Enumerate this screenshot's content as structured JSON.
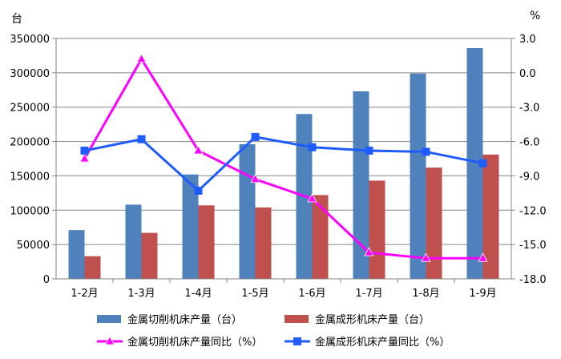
{
  "chart_data": {
    "type": "bar",
    "categories": [
      "1-2月",
      "1-3月",
      "1-4月",
      "1-5月",
      "1-6月",
      "1-7月",
      "1-8月",
      "1-9月"
    ],
    "left_axis": {
      "unit": "台",
      "ylim": [
        0,
        350000
      ],
      "ticks": [
        "0",
        "50000",
        "100000",
        "150000",
        "200000",
        "250000",
        "300000",
        "350000"
      ]
    },
    "right_axis": {
      "unit": "%",
      "ylim": [
        -18.0,
        3.0
      ],
      "ticks": [
        "-18.0",
        "-15.0",
        "-12.0",
        "-9.0",
        "-6.0",
        "-3.0",
        "0.0",
        "3.0"
      ]
    },
    "bar_series": [
      {
        "name": "金属切削机床产量（台）",
        "color": "#4F81BD",
        "values": [
          71000,
          108000,
          152000,
          196000,
          240000,
          273000,
          299000,
          336000
        ]
      },
      {
        "name": "金属成形机床产量（台）",
        "color": "#C0504D",
        "values": [
          33000,
          67000,
          107000,
          104000,
          122000,
          143000,
          162000,
          181000
        ]
      }
    ],
    "line_series": [
      {
        "name": "金属切削机床产量同比（%）",
        "color": "#FF00FF",
        "marker": "triangle",
        "values": [
          -7.5,
          1.2,
          -6.8,
          -9.3,
          -11.0,
          -15.7,
          -16.2,
          -16.2
        ]
      },
      {
        "name": "金属成形机床产量同比（%）",
        "color": "#1F5CFF",
        "marker": "square",
        "values": [
          -6.8,
          -5.8,
          -10.3,
          -5.6,
          -6.5,
          -6.8,
          -6.9,
          -7.9
        ]
      }
    ],
    "legend_position": "bottom",
    "grid": true
  }
}
